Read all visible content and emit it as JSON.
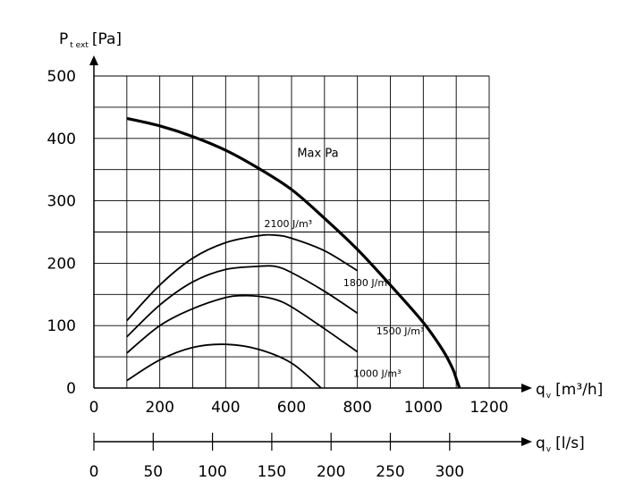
{
  "chart_data": {
    "type": "line",
    "y_axis": {
      "label_main": "P",
      "label_sub": "t ext",
      "label_unit": "[Pa]",
      "range": [
        0,
        500
      ],
      "ticks": [
        "0",
        "100",
        "200",
        "300",
        "400",
        "500"
      ]
    },
    "x_axis_primary": {
      "label_main": "q",
      "label_sub": "v",
      "label_unit": "[m³/h]",
      "range": [
        0,
        1200
      ],
      "ticks": [
        "0",
        "200",
        "400",
        "600",
        "800",
        "1000",
        "1200"
      ]
    },
    "x_axis_secondary": {
      "label_main": "q",
      "label_sub": "v",
      "label_unit": "[l/s]",
      "ticks": [
        "0",
        "50",
        "100",
        "150",
        "200",
        "250",
        "300"
      ],
      "tick_values_m3h": [
        0,
        180,
        360,
        540,
        720,
        900,
        1080
      ]
    },
    "grid": true,
    "series": [
      {
        "name": "Max Pa",
        "bold": true,
        "x": [
          100,
          200,
          300,
          400,
          500,
          600,
          700,
          800,
          900,
          1000,
          1060,
          1090,
          1100,
          1110
        ],
        "y": [
          432,
          420,
          403,
          381,
          352,
          318,
          272,
          222,
          165,
          105,
          60,
          30,
          15,
          0
        ]
      },
      {
        "name": "2100 J/m³",
        "x": [
          100,
          200,
          300,
          400,
          500,
          550,
          600,
          700,
          800
        ],
        "y": [
          108,
          165,
          208,
          233,
          244,
          245,
          240,
          220,
          188
        ]
      },
      {
        "name": "1800 J/m³",
        "x": [
          100,
          200,
          300,
          400,
          500,
          550,
          600,
          700,
          800
        ],
        "y": [
          82,
          133,
          170,
          190,
          195,
          195,
          185,
          155,
          120
        ]
      },
      {
        "name": "1500 J/m³",
        "x": [
          100,
          200,
          300,
          400,
          450,
          500,
          550,
          600,
          700,
          800
        ],
        "y": [
          56,
          100,
          127,
          145,
          148,
          147,
          142,
          130,
          95,
          58
        ]
      },
      {
        "name": "1000 J/m³",
        "x": [
          100,
          200,
          300,
          400,
          500,
          600,
          690
        ],
        "y": [
          12,
          45,
          65,
          70,
          62,
          40,
          0
        ]
      }
    ]
  }
}
